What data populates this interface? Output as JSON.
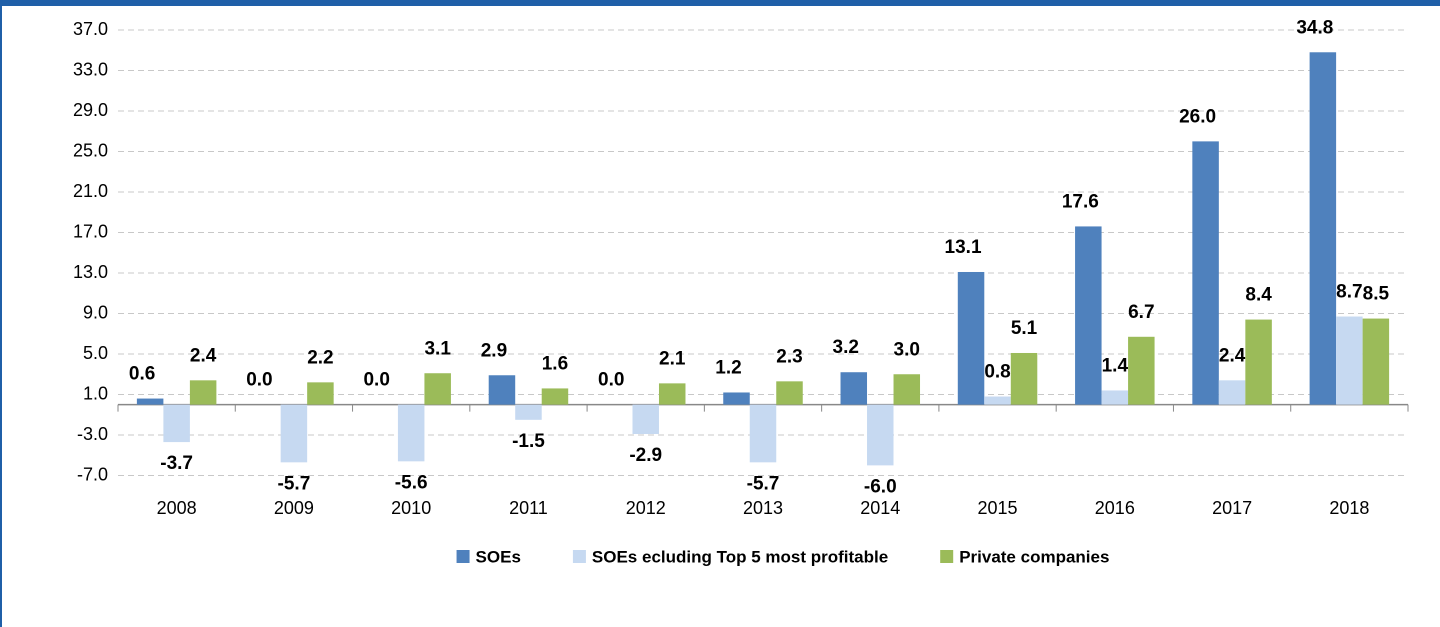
{
  "chart_data": {
    "type": "bar",
    "categories": [
      "2008",
      "2009",
      "2010",
      "2011",
      "2012",
      "2013",
      "2014",
      "2015",
      "2016",
      "2017",
      "2018"
    ],
    "series": [
      {
        "name": "SOEs",
        "color": "#4f81bd",
        "values": [
          0.6,
          0.0,
          0.0,
          2.9,
          0.0,
          1.2,
          3.2,
          13.1,
          17.6,
          26.0,
          34.8
        ],
        "value_labels": [
          "0.6",
          "0.0",
          "0.0",
          "2.9",
          "0.0",
          "1.2",
          "3.2",
          "13.1",
          "17.6",
          "26.0",
          "34.8"
        ]
      },
      {
        "name": "SOEs ecluding Top 5 most profitable",
        "color": "#c6d9f1",
        "values": [
          -3.7,
          -5.7,
          -5.6,
          -1.5,
          -2.9,
          -5.7,
          -6.0,
          0.8,
          1.4,
          2.4,
          8.7
        ],
        "value_labels": [
          "-3.7",
          "-5.7",
          "-5.6",
          "-1.5",
          "-2.9",
          "-5.7",
          "-6.0",
          "0.8",
          "1.4",
          "2.4",
          "8.7"
        ]
      },
      {
        "name": "Private companies",
        "color": "#9bbb59",
        "values": [
          2.4,
          2.2,
          3.1,
          1.6,
          2.1,
          2.3,
          3.0,
          5.1,
          6.7,
          8.4,
          8.5
        ],
        "value_labels": [
          "2.4",
          "2.2",
          "3.1",
          "1.6",
          "2.1",
          "2.3",
          "3.0",
          "5.1",
          "6.7",
          "8.4",
          "8.5"
        ]
      }
    ],
    "ylim": [
      -7,
      37
    ],
    "yticks": [
      {
        "value": -7,
        "label": "-7.0"
      },
      {
        "value": -3,
        "label": "-3.0"
      },
      {
        "value": 1,
        "label": "1.0"
      },
      {
        "value": 5,
        "label": "5.0"
      },
      {
        "value": 9,
        "label": "9.0"
      },
      {
        "value": 13,
        "label": "13.0"
      },
      {
        "value": 17,
        "label": "17.0"
      },
      {
        "value": 21,
        "label": "21.0"
      },
      {
        "value": 25,
        "label": "25.0"
      },
      {
        "value": 29,
        "label": "29.0"
      },
      {
        "value": 33,
        "label": "33.0"
      },
      {
        "value": 37,
        "label": "37.0"
      }
    ],
    "grid": true,
    "legend": "bottom"
  }
}
